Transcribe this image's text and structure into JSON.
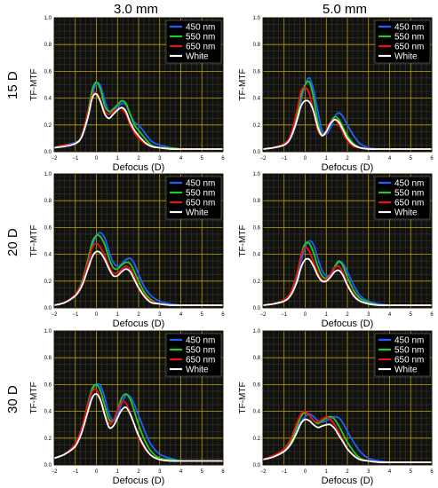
{
  "column_titles": [
    "3.0 mm",
    "5.0 mm"
  ],
  "row_titles": [
    "15 D",
    "20 D",
    "30 D"
  ],
  "colors": {
    "450 nm": "#1f5fff",
    "550 nm": "#22cc22",
    "650 nm": "#ee1111",
    "White": "#ffffff",
    "plot_background": "#111111",
    "grid": "#b8a000"
  },
  "chart_data": [
    {
      "type": "line",
      "column": "3.0 mm",
      "row": "15 D",
      "xlabel": "Defocus (D)",
      "ylabel": "TF-MTF",
      "xlim": [
        -2,
        6
      ],
      "ylim": [
        0,
        1.0
      ],
      "xticks": [
        "−2",
        "−1",
        "0",
        "1",
        "2",
        "3",
        "4",
        "5",
        "6"
      ],
      "yticks": [
        "0.0",
        "0.2",
        "0.4",
        "0.6",
        "0.8",
        "1.0"
      ],
      "grid": true,
      "legend_position": "top-right",
      "x": [
        -2,
        -1.5,
        -1,
        -0.7,
        -0.4,
        -0.2,
        0,
        0.2,
        0.4,
        0.6,
        0.8,
        1,
        1.2,
        1.4,
        1.6,
        1.8,
        2,
        2.3,
        2.6,
        3,
        3.5,
        4,
        4.5,
        5,
        5.5,
        6
      ],
      "series": [
        {
          "name": "450 nm",
          "values": [
            0.03,
            0.05,
            0.07,
            0.11,
            0.25,
            0.42,
            0.51,
            0.49,
            0.38,
            0.3,
            0.31,
            0.33,
            0.36,
            0.35,
            0.28,
            0.22,
            0.2,
            0.14,
            0.08,
            0.05,
            0.03,
            0.02,
            0.02,
            0.02,
            0.02,
            0.02
          ]
        },
        {
          "name": "550 nm",
          "values": [
            0.03,
            0.05,
            0.06,
            0.12,
            0.3,
            0.46,
            0.52,
            0.46,
            0.34,
            0.3,
            0.32,
            0.35,
            0.38,
            0.36,
            0.28,
            0.2,
            0.16,
            0.1,
            0.05,
            0.03,
            0.03,
            0.02,
            0.02,
            0.02,
            0.02,
            0.02
          ]
        },
        {
          "name": "650 nm",
          "values": [
            0.03,
            0.05,
            0.06,
            0.12,
            0.29,
            0.42,
            0.44,
            0.38,
            0.3,
            0.28,
            0.3,
            0.32,
            0.32,
            0.28,
            0.2,
            0.14,
            0.1,
            0.06,
            0.04,
            0.03,
            0.02,
            0.02,
            0.02,
            0.02,
            0.02,
            0.02
          ]
        },
        {
          "name": "White",
          "values": [
            0.03,
            0.04,
            0.06,
            0.11,
            0.26,
            0.4,
            0.43,
            0.37,
            0.28,
            0.25,
            0.28,
            0.31,
            0.33,
            0.3,
            0.22,
            0.16,
            0.12,
            0.07,
            0.04,
            0.03,
            0.02,
            0.02,
            0.02,
            0.02,
            0.02,
            0.02
          ]
        }
      ]
    },
    {
      "type": "line",
      "column": "5.0 mm",
      "row": "15 D",
      "xlabel": "Defocus (D)",
      "ylabel": "TF-MTF",
      "xlim": [
        -2,
        6
      ],
      "ylim": [
        0,
        1.0
      ],
      "xticks": [
        "−2",
        "−1",
        "0",
        "1",
        "2",
        "3",
        "4",
        "5",
        "6"
      ],
      "yticks": [
        "0.0",
        "0.2",
        "0.4",
        "0.6",
        "0.8",
        "1.0"
      ],
      "grid": true,
      "legend_position": "top-right",
      "x": [
        -2,
        -1.5,
        -1,
        -0.7,
        -0.4,
        -0.2,
        0,
        0.2,
        0.4,
        0.6,
        0.8,
        1,
        1.2,
        1.4,
        1.6,
        1.8,
        2,
        2.3,
        2.6,
        3,
        3.5,
        4,
        4.5,
        5,
        5.5,
        6
      ],
      "series": [
        {
          "name": "450 nm",
          "values": [
            0.02,
            0.03,
            0.06,
            0.1,
            0.22,
            0.38,
            0.5,
            0.55,
            0.46,
            0.3,
            0.16,
            0.13,
            0.18,
            0.26,
            0.29,
            0.26,
            0.2,
            0.12,
            0.06,
            0.03,
            0.02,
            0.02,
            0.02,
            0.02,
            0.02,
            0.02
          ]
        },
        {
          "name": "550 nm",
          "values": [
            0.02,
            0.03,
            0.06,
            0.11,
            0.26,
            0.42,
            0.5,
            0.52,
            0.4,
            0.22,
            0.13,
            0.15,
            0.22,
            0.26,
            0.24,
            0.18,
            0.12,
            0.06,
            0.03,
            0.02,
            0.02,
            0.02,
            0.02,
            0.02,
            0.02,
            0.02
          ]
        },
        {
          "name": "650 nm",
          "values": [
            0.02,
            0.03,
            0.06,
            0.12,
            0.3,
            0.45,
            0.48,
            0.43,
            0.3,
            0.16,
            0.12,
            0.16,
            0.22,
            0.24,
            0.2,
            0.14,
            0.08,
            0.04,
            0.03,
            0.02,
            0.02,
            0.02,
            0.02,
            0.02,
            0.02,
            0.02
          ]
        },
        {
          "name": "White",
          "values": [
            0.02,
            0.03,
            0.05,
            0.1,
            0.23,
            0.34,
            0.38,
            0.37,
            0.3,
            0.18,
            0.12,
            0.15,
            0.21,
            0.24,
            0.22,
            0.16,
            0.1,
            0.05,
            0.03,
            0.02,
            0.02,
            0.02,
            0.02,
            0.02,
            0.02,
            0.02
          ]
        }
      ]
    },
    {
      "type": "line",
      "column": "3.0 mm",
      "row": "20 D",
      "xlabel": "Defocus (D)",
      "ylabel": "TF-MTF",
      "xlim": [
        -2,
        6
      ],
      "ylim": [
        0,
        1.0
      ],
      "xticks": [
        "−2",
        "−1",
        "0",
        "1",
        "2",
        "3",
        "4",
        "5",
        "6"
      ],
      "yticks": [
        "0.0",
        "0.2",
        "0.4",
        "0.6",
        "0.8",
        "1.0"
      ],
      "grid": true,
      "legend_position": "top-right",
      "x": [
        -2,
        -1.5,
        -1,
        -0.7,
        -0.4,
        -0.2,
        0,
        0.2,
        0.4,
        0.6,
        0.8,
        1,
        1.2,
        1.4,
        1.6,
        1.8,
        2,
        2.3,
        2.6,
        3,
        3.5,
        4,
        4.5,
        5,
        5.5,
        6
      ],
      "series": [
        {
          "name": "450 nm",
          "values": [
            0.02,
            0.04,
            0.1,
            0.18,
            0.33,
            0.46,
            0.54,
            0.56,
            0.52,
            0.42,
            0.34,
            0.31,
            0.33,
            0.36,
            0.37,
            0.33,
            0.25,
            0.15,
            0.09,
            0.05,
            0.03,
            0.02,
            0.02,
            0.02,
            0.02,
            0.02
          ]
        },
        {
          "name": "550 nm",
          "values": [
            0.02,
            0.04,
            0.1,
            0.19,
            0.36,
            0.49,
            0.54,
            0.53,
            0.47,
            0.37,
            0.3,
            0.29,
            0.32,
            0.34,
            0.33,
            0.27,
            0.2,
            0.11,
            0.06,
            0.03,
            0.02,
            0.02,
            0.02,
            0.02,
            0.02,
            0.02
          ]
        },
        {
          "name": "650 nm",
          "values": [
            0.02,
            0.04,
            0.1,
            0.18,
            0.34,
            0.45,
            0.48,
            0.45,
            0.39,
            0.31,
            0.26,
            0.26,
            0.29,
            0.31,
            0.29,
            0.23,
            0.16,
            0.09,
            0.05,
            0.03,
            0.02,
            0.02,
            0.02,
            0.02,
            0.02,
            0.02
          ]
        },
        {
          "name": "White",
          "values": [
            0.02,
            0.04,
            0.09,
            0.16,
            0.29,
            0.38,
            0.42,
            0.41,
            0.36,
            0.29,
            0.24,
            0.24,
            0.27,
            0.29,
            0.27,
            0.21,
            0.15,
            0.08,
            0.04,
            0.03,
            0.02,
            0.02,
            0.02,
            0.02,
            0.02,
            0.02
          ]
        }
      ]
    },
    {
      "type": "line",
      "column": "5.0 mm",
      "row": "20 D",
      "xlabel": "Defocus (D)",
      "ylabel": "TF-MTF",
      "xlim": [
        -2,
        6
      ],
      "ylim": [
        0,
        1.0
      ],
      "xticks": [
        "−2",
        "−1",
        "0",
        "1",
        "2",
        "3",
        "4",
        "5",
        "6"
      ],
      "yticks": [
        "0.0",
        "0.2",
        "0.4",
        "0.6",
        "0.8",
        "1.0"
      ],
      "grid": true,
      "legend_position": "top-right",
      "x": [
        -2,
        -1.5,
        -1,
        -0.7,
        -0.4,
        -0.2,
        0,
        0.2,
        0.4,
        0.6,
        0.8,
        1,
        1.2,
        1.4,
        1.6,
        1.8,
        2,
        2.3,
        2.6,
        3,
        3.5,
        4,
        4.5,
        5,
        5.5,
        6
      ],
      "series": [
        {
          "name": "450 nm",
          "values": [
            0.02,
            0.03,
            0.06,
            0.1,
            0.2,
            0.35,
            0.45,
            0.5,
            0.47,
            0.37,
            0.28,
            0.24,
            0.25,
            0.3,
            0.34,
            0.33,
            0.27,
            0.17,
            0.09,
            0.05,
            0.03,
            0.02,
            0.02,
            0.02,
            0.02,
            0.02
          ]
        },
        {
          "name": "550 nm",
          "values": [
            0.02,
            0.03,
            0.06,
            0.11,
            0.24,
            0.39,
            0.48,
            0.48,
            0.41,
            0.31,
            0.24,
            0.22,
            0.25,
            0.31,
            0.35,
            0.31,
            0.23,
            0.13,
            0.07,
            0.04,
            0.02,
            0.02,
            0.02,
            0.02,
            0.02,
            0.02
          ]
        },
        {
          "name": "650 nm",
          "values": [
            0.02,
            0.03,
            0.06,
            0.11,
            0.25,
            0.39,
            0.45,
            0.42,
            0.34,
            0.26,
            0.21,
            0.21,
            0.25,
            0.3,
            0.31,
            0.26,
            0.18,
            0.1,
            0.05,
            0.03,
            0.02,
            0.02,
            0.02,
            0.02,
            0.02,
            0.02
          ]
        },
        {
          "name": "White",
          "values": [
            0.02,
            0.03,
            0.05,
            0.09,
            0.19,
            0.3,
            0.36,
            0.36,
            0.31,
            0.24,
            0.2,
            0.2,
            0.23,
            0.27,
            0.28,
            0.24,
            0.17,
            0.09,
            0.05,
            0.03,
            0.02,
            0.02,
            0.02,
            0.02,
            0.02,
            0.02
          ]
        }
      ]
    },
    {
      "type": "line",
      "column": "3.0 mm",
      "row": "30 D",
      "xlabel": "Defocus (D)",
      "ylabel": "TF-MTF",
      "xlim": [
        -2,
        6
      ],
      "ylim": [
        0,
        1.0
      ],
      "xticks": [
        "−2",
        "−1",
        "0",
        "1",
        "2",
        "3",
        "4",
        "5",
        "6"
      ],
      "yticks": [
        "0.0",
        "0.2",
        "0.4",
        "0.6",
        "0.8",
        "1.0"
      ],
      "grid": true,
      "legend_position": "top-right",
      "x": [
        -2,
        -1.5,
        -1,
        -0.7,
        -0.4,
        -0.2,
        0,
        0.2,
        0.4,
        0.6,
        0.8,
        1,
        1.2,
        1.4,
        1.6,
        1.8,
        2,
        2.3,
        2.6,
        3,
        3.5,
        4,
        4.5,
        5,
        5.5,
        6
      ],
      "series": [
        {
          "name": "450 nm",
          "values": [
            0.05,
            0.08,
            0.15,
            0.25,
            0.42,
            0.55,
            0.6,
            0.59,
            0.5,
            0.38,
            0.33,
            0.37,
            0.46,
            0.52,
            0.51,
            0.45,
            0.37,
            0.25,
            0.15,
            0.08,
            0.05,
            0.03,
            0.03,
            0.03,
            0.03,
            0.03
          ]
        },
        {
          "name": "550 nm",
          "values": [
            0.05,
            0.08,
            0.16,
            0.27,
            0.46,
            0.57,
            0.6,
            0.55,
            0.44,
            0.34,
            0.33,
            0.41,
            0.5,
            0.53,
            0.49,
            0.4,
            0.3,
            0.18,
            0.1,
            0.05,
            0.04,
            0.03,
            0.03,
            0.03,
            0.03,
            0.03
          ]
        },
        {
          "name": "650 nm",
          "values": [
            0.05,
            0.08,
            0.16,
            0.27,
            0.45,
            0.55,
            0.56,
            0.49,
            0.38,
            0.31,
            0.33,
            0.41,
            0.47,
            0.46,
            0.39,
            0.3,
            0.21,
            0.12,
            0.07,
            0.04,
            0.03,
            0.03,
            0.03,
            0.03,
            0.03,
            0.03
          ]
        },
        {
          "name": "White",
          "values": [
            0.05,
            0.08,
            0.14,
            0.24,
            0.4,
            0.5,
            0.53,
            0.48,
            0.37,
            0.28,
            0.29,
            0.35,
            0.41,
            0.43,
            0.38,
            0.3,
            0.22,
            0.13,
            0.07,
            0.04,
            0.03,
            0.03,
            0.03,
            0.03,
            0.03,
            0.03
          ]
        }
      ]
    },
    {
      "type": "line",
      "column": "5.0 mm",
      "row": "30 D",
      "xlabel": "Defocus (D)",
      "ylabel": "TF-MTF",
      "xlim": [
        -2,
        6
      ],
      "ylim": [
        0,
        1.0
      ],
      "xticks": [
        "−2",
        "−1",
        "0",
        "1",
        "2",
        "3",
        "4",
        "5",
        "6"
      ],
      "yticks": [
        "0.0",
        "0.2",
        "0.4",
        "0.6",
        "0.8",
        "1.0"
      ],
      "grid": true,
      "legend_position": "top-right",
      "x": [
        -2,
        -1.5,
        -1,
        -0.7,
        -0.4,
        -0.2,
        0,
        0.2,
        0.4,
        0.6,
        0.8,
        1,
        1.2,
        1.4,
        1.6,
        1.8,
        2,
        2.3,
        2.6,
        3,
        3.5,
        4,
        4.5,
        5,
        5.5,
        6
      ],
      "series": [
        {
          "name": "450 nm",
          "values": [
            0.04,
            0.07,
            0.11,
            0.16,
            0.25,
            0.32,
            0.36,
            0.38,
            0.36,
            0.33,
            0.32,
            0.33,
            0.35,
            0.36,
            0.35,
            0.31,
            0.25,
            0.17,
            0.1,
            0.05,
            0.03,
            0.02,
            0.02,
            0.02,
            0.02,
            0.02
          ]
        },
        {
          "name": "550 nm",
          "values": [
            0.04,
            0.07,
            0.11,
            0.17,
            0.28,
            0.36,
            0.39,
            0.37,
            0.33,
            0.31,
            0.33,
            0.35,
            0.36,
            0.34,
            0.29,
            0.23,
            0.17,
            0.1,
            0.05,
            0.03,
            0.02,
            0.02,
            0.02,
            0.02,
            0.02,
            0.02
          ]
        },
        {
          "name": "650 nm",
          "values": [
            0.04,
            0.07,
            0.12,
            0.19,
            0.31,
            0.38,
            0.4,
            0.37,
            0.33,
            0.32,
            0.34,
            0.36,
            0.34,
            0.3,
            0.24,
            0.18,
            0.12,
            0.07,
            0.04,
            0.03,
            0.02,
            0.02,
            0.02,
            0.02,
            0.02,
            0.02
          ]
        },
        {
          "name": "White",
          "values": [
            0.04,
            0.06,
            0.1,
            0.15,
            0.24,
            0.31,
            0.34,
            0.33,
            0.3,
            0.28,
            0.29,
            0.3,
            0.3,
            0.27,
            0.22,
            0.17,
            0.12,
            0.07,
            0.04,
            0.03,
            0.02,
            0.02,
            0.02,
            0.02,
            0.02,
            0.02
          ]
        }
      ]
    }
  ]
}
